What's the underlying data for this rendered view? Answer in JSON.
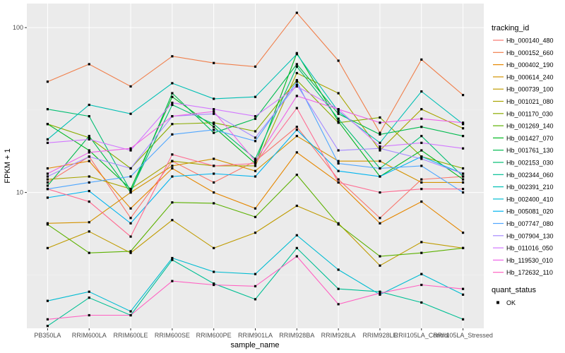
{
  "chart_data": {
    "type": "line",
    "xlabel": "sample_name",
    "ylabel": "FPKM + 1",
    "y_scale": "log10",
    "ylim": [
      1.5,
      140
    ],
    "yticks": [
      {
        "value": 10,
        "label": "10"
      },
      {
        "value": 100,
        "label": "100"
      }
    ],
    "grid": true,
    "legend_position": "right",
    "categories": [
      "PB350LA",
      "RRIM600LA",
      "RRIM600LE",
      "RRIM600SE",
      "RRIM600PE",
      "RRIM901LA",
      "RRIM928BA",
      "RRIM928LA",
      "RRIM928LE",
      "RRII105LA_Control",
      "RRII105LA_Stressed"
    ],
    "legend_title": "tracking_id",
    "series": [
      {
        "name": "Hb_000140_480",
        "color": "#F8766D",
        "values": [
          11.5,
          16.5,
          7.0,
          15.5,
          11.5,
          15.5,
          25.0,
          12.0,
          7.0,
          12.0,
          12.5
        ]
      },
      {
        "name": "Hb_000152_660",
        "color": "#F07F4B",
        "values": [
          47.0,
          60.0,
          44.0,
          67.0,
          61.0,
          58.0,
          123.0,
          63.0,
          23.0,
          64.0,
          39.0
        ]
      },
      {
        "name": "Hb_000402_190",
        "color": "#E58700",
        "values": [
          14.0,
          15.5,
          8.0,
          14.0,
          10.0,
          8.0,
          17.5,
          11.5,
          6.5,
          8.8,
          5.7
        ]
      },
      {
        "name": "Hb_000614_240",
        "color": "#D39200",
        "values": [
          6.5,
          6.6,
          10.0,
          14.5,
          16.0,
          13.5,
          22.0,
          15.5,
          15.5,
          11.5,
          11.5
        ]
      },
      {
        "name": "Hb_000739_100",
        "color": "#BF9B00",
        "values": [
          4.6,
          5.8,
          4.3,
          6.8,
          4.6,
          5.7,
          8.3,
          6.5,
          3.6,
          5.0,
          4.6
        ]
      },
      {
        "name": "Hb_001021_080",
        "color": "#A8A400",
        "values": [
          12.0,
          12.5,
          10.5,
          15.5,
          14.5,
          14.5,
          53.0,
          40.0,
          18.0,
          32.0,
          24.5
        ]
      },
      {
        "name": "Hb_001170_030",
        "color": "#8AAB00",
        "values": [
          26.0,
          21.5,
          14.0,
          26.0,
          26.5,
          23.5,
          48.0,
          26.5,
          28.5,
          16.5,
          14.0
        ]
      },
      {
        "name": "Hb_001269_140",
        "color": "#5CB100",
        "values": [
          6.4,
          4.3,
          4.4,
          8.7,
          8.6,
          7.1,
          12.8,
          6.4,
          4.1,
          4.3,
          4.6
        ]
      },
      {
        "name": "Hb_001427_070",
        "color": "#00B81F",
        "values": [
          26.0,
          18.0,
          10.5,
          38.0,
          25.0,
          15.0,
          70.0,
          27.0,
          12.5,
          18.0,
          12.0
        ]
      },
      {
        "name": "Hb_001761_130",
        "color": "#00BB4E",
        "values": [
          11.0,
          22.0,
          10.0,
          40.0,
          23.0,
          28.0,
          60.0,
          30.0,
          22.5,
          25.0,
          22.0
        ]
      },
      {
        "name": "Hb_002153_030",
        "color": "#00BE71",
        "values": [
          32.0,
          29.0,
          10.2,
          34.0,
          26.0,
          16.0,
          58.0,
          28.0,
          14.0,
          22.0,
          12.5
        ]
      },
      {
        "name": "Hb_002344_060",
        "color": "#00BF94",
        "values": [
          1.55,
          2.3,
          1.8,
          3.9,
          2.8,
          2.25,
          4.6,
          2.6,
          2.5,
          2.15,
          1.7
        ]
      },
      {
        "name": "Hb_002391_210",
        "color": "#00BFB4",
        "values": [
          21.0,
          34.0,
          30.0,
          46.0,
          37.0,
          38.0,
          69.0,
          31.0,
          20.0,
          41.0,
          26.0
        ]
      },
      {
        "name": "Hb_002400_410",
        "color": "#00BCD2",
        "values": [
          2.2,
          2.5,
          1.9,
          4.0,
          3.3,
          3.2,
          5.5,
          3.4,
          2.4,
          3.2,
          2.4
        ]
      },
      {
        "name": "Hb_005081_020",
        "color": "#00B4EF",
        "values": [
          9.3,
          10.2,
          6.5,
          12.5,
          13.0,
          12.5,
          24.0,
          13.5,
          12.5,
          16.5,
          13.0
        ]
      },
      {
        "name": "Hb_007747_080",
        "color": "#4FA6FF",
        "values": [
          10.5,
          11.5,
          12.5,
          22.5,
          24.0,
          20.5,
          47.0,
          15.0,
          14.0,
          14.5,
          10.0
        ]
      },
      {
        "name": "Hb_007904_130",
        "color": "#A58AFF",
        "values": [
          12.5,
          16.5,
          14.0,
          29.0,
          30.0,
          21.5,
          45.0,
          18.0,
          18.5,
          16.0,
          13.0
        ]
      },
      {
        "name": "Hb_011016_050",
        "color": "#D277FF",
        "values": [
          20.0,
          21.0,
          18.0,
          35.0,
          32.0,
          29.0,
          44.0,
          32.0,
          19.0,
          20.0,
          18.5
        ]
      },
      {
        "name": "Hb_119530_010",
        "color": "#EE63E8",
        "values": [
          13.0,
          17.5,
          18.5,
          29.0,
          31.0,
          15.5,
          38.5,
          32.0,
          26.5,
          28.0,
          26.5
        ]
      },
      {
        "name": "Hb_172632_110",
        "color": "#FF61C2",
        "values": [
          1.7,
          1.8,
          1.8,
          2.9,
          2.75,
          2.7,
          4.1,
          2.1,
          2.45,
          2.75,
          2.6
        ]
      },
      {
        "name": "",
        "color": "#FF6C92",
        "values": [
          10.5,
          8.8,
          5.4,
          17.0,
          14.5,
          15.0,
          32.5,
          11.5,
          10.0,
          10.5,
          10.5
        ]
      }
    ],
    "status_legend": {
      "title": "quant_status",
      "items": [
        {
          "label": "OK",
          "symbol": "square"
        }
      ]
    }
  }
}
